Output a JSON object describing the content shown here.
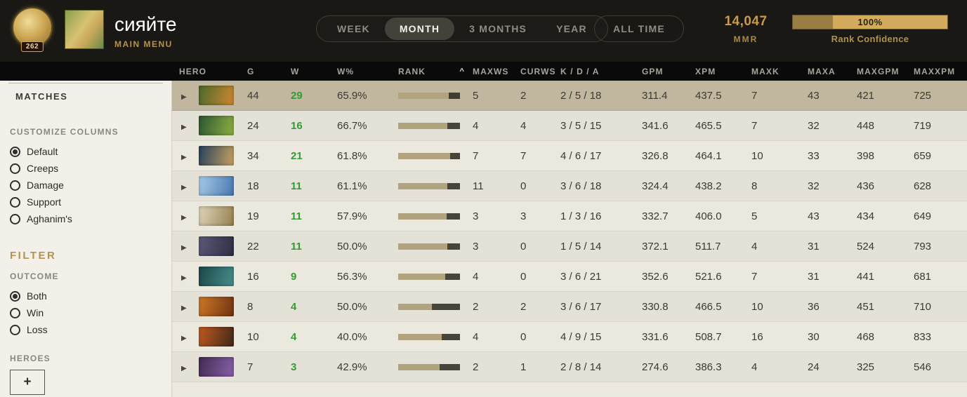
{
  "topbar": {
    "medal_level": "262",
    "username": "сияйте",
    "subtitle": "MAIN MENU",
    "tabs": [
      {
        "label": "WEEK",
        "active": false
      },
      {
        "label": "MONTH",
        "active": true
      },
      {
        "label": "3 MONTHS",
        "active": false
      },
      {
        "label": "YEAR",
        "active": false
      }
    ],
    "all_time_label": "ALL TIME",
    "mmr": {
      "value": "14,047",
      "label": "MMR"
    },
    "rank_confidence": {
      "percent": "100%",
      "label": "Rank Confidence"
    }
  },
  "sidebar": {
    "matches_label": "MATCHES",
    "customize_columns": {
      "title": "CUSTOMIZE COLUMNS",
      "options": [
        {
          "label": "Default",
          "selected": true
        },
        {
          "label": "Creeps",
          "selected": false
        },
        {
          "label": "Damage",
          "selected": false
        },
        {
          "label": "Support",
          "selected": false
        },
        {
          "label": "Aghanim's",
          "selected": false
        }
      ]
    },
    "filter_title": "FILTER",
    "outcome": {
      "title": "OUTCOME",
      "options": [
        {
          "label": "Both",
          "selected": true
        },
        {
          "label": "Win",
          "selected": false
        },
        {
          "label": "Loss",
          "selected": false
        }
      ]
    },
    "heroes_title": "HEROES",
    "add_hero_label": "+"
  },
  "table": {
    "columns": [
      "HERO",
      "G",
      "W",
      "W%",
      "RANK",
      "MAXWS",
      "CURWS",
      "K / D / A",
      "GPM",
      "XPM",
      "MAXK",
      "MAXA",
      "MAXGPM",
      "MAXXPM"
    ],
    "sort_column": "RANK",
    "sort_caret": "^",
    "expand_icon": "▶",
    "rows": [
      {
        "g": "44",
        "w": "29",
        "wpct": "65.9%",
        "rank_fill": 0.82,
        "maxws": "5",
        "curws": "2",
        "kda": "2 / 5 / 18",
        "gpm": "311.4",
        "xpm": "437.5",
        "maxk": "7",
        "maxa": "43",
        "maxgpm": "421",
        "maxxpm": "725",
        "portrait": [
          "#4a6b2a",
          "#cf8830"
        ],
        "highlighted": true
      },
      {
        "g": "24",
        "w": "16",
        "wpct": "66.7%",
        "rank_fill": 0.8,
        "maxws": "4",
        "curws": "4",
        "kda": "3 / 5 / 15",
        "gpm": "341.6",
        "xpm": "465.5",
        "maxk": "7",
        "maxa": "32",
        "maxgpm": "448",
        "maxxpm": "719",
        "portrait": [
          "#2a5632",
          "#8fb042"
        ],
        "highlighted": false
      },
      {
        "g": "34",
        "w": "21",
        "wpct": "61.8%",
        "rank_fill": 0.84,
        "maxws": "7",
        "curws": "7",
        "kda": "4 / 6 / 17",
        "gpm": "326.8",
        "xpm": "464.1",
        "maxk": "10",
        "maxa": "33",
        "maxgpm": "398",
        "maxxpm": "659",
        "portrait": [
          "#24405e",
          "#c8a360"
        ],
        "highlighted": false
      },
      {
        "g": "18",
        "w": "11",
        "wpct": "61.1%",
        "rank_fill": 0.8,
        "maxws": "11",
        "curws": "0",
        "kda": "3 / 6 / 18",
        "gpm": "324.4",
        "xpm": "438.2",
        "maxk": "8",
        "maxa": "32",
        "maxgpm": "436",
        "maxxpm": "628",
        "portrait": [
          "#a8cce8",
          "#4878b0"
        ],
        "highlighted": false
      },
      {
        "g": "19",
        "w": "11",
        "wpct": "57.9%",
        "rank_fill": 0.78,
        "maxws": "3",
        "curws": "3",
        "kda": "1 / 3 / 16",
        "gpm": "332.7",
        "xpm": "406.0",
        "maxk": "5",
        "maxa": "43",
        "maxgpm": "434",
        "maxxpm": "649",
        "portrait": [
          "#e0d6bc",
          "#96804e"
        ],
        "highlighted": false
      },
      {
        "g": "22",
        "w": "11",
        "wpct": "50.0%",
        "rank_fill": 0.8,
        "maxws": "3",
        "curws": "0",
        "kda": "1 / 5 / 14",
        "gpm": "372.1",
        "xpm": "511.7",
        "maxk": "4",
        "maxa": "31",
        "maxgpm": "524",
        "maxxpm": "793",
        "portrait": [
          "#5a5a78",
          "#2e2e44"
        ],
        "highlighted": false
      },
      {
        "g": "16",
        "w": "9",
        "wpct": "56.3%",
        "rank_fill": 0.76,
        "maxws": "4",
        "curws": "0",
        "kda": "3 / 6 / 21",
        "gpm": "352.6",
        "xpm": "521.6",
        "maxk": "7",
        "maxa": "31",
        "maxgpm": "441",
        "maxxpm": "681",
        "portrait": [
          "#1e4648",
          "#46908c"
        ],
        "highlighted": false
      },
      {
        "g": "8",
        "w": "4",
        "wpct": "50.0%",
        "rank_fill": 0.55,
        "maxws": "2",
        "curws": "2",
        "kda": "3 / 6 / 17",
        "gpm": "330.8",
        "xpm": "466.5",
        "maxk": "10",
        "maxa": "36",
        "maxgpm": "451",
        "maxxpm": "710",
        "portrait": [
          "#d07828",
          "#6e3410"
        ],
        "highlighted": false
      },
      {
        "g": "10",
        "w": "4",
        "wpct": "40.0%",
        "rank_fill": 0.7,
        "maxws": "4",
        "curws": "0",
        "kda": "4 / 9 / 15",
        "gpm": "331.6",
        "xpm": "508.7",
        "maxk": "16",
        "maxa": "30",
        "maxgpm": "468",
        "maxxpm": "833",
        "portrait": [
          "#c05a20",
          "#402818"
        ],
        "highlighted": false
      },
      {
        "g": "7",
        "w": "3",
        "wpct": "42.9%",
        "rank_fill": 0.67,
        "maxws": "2",
        "curws": "1",
        "kda": "2 / 8 / 14",
        "gpm": "274.6",
        "xpm": "386.3",
        "maxk": "4",
        "maxa": "24",
        "maxgpm": "325",
        "maxxpm": "546",
        "portrait": [
          "#442c54",
          "#8860a8"
        ],
        "highlighted": false
      }
    ]
  },
  "colors": {
    "accent_gold": "#c89b4b",
    "win_green": "#2f9e2f",
    "rank_bar_fill": "#b2a37f",
    "row_highlight": "#c1b69e"
  }
}
